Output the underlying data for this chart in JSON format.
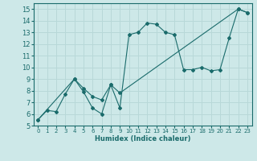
{
  "xlabel": "Humidex (Indice chaleur)",
  "ylabel": "",
  "background_color": "#cde8e8",
  "grid_color": "#b8d8d8",
  "line_color": "#1a6b6b",
  "xlim": [
    -0.5,
    23.5
  ],
  "ylim": [
    5,
    15.5
  ],
  "yticks": [
    5,
    6,
    7,
    8,
    9,
    10,
    11,
    12,
    13,
    14,
    15
  ],
  "xticks": [
    0,
    1,
    2,
    3,
    4,
    5,
    6,
    7,
    8,
    9,
    10,
    11,
    12,
    13,
    14,
    15,
    16,
    17,
    18,
    19,
    20,
    21,
    22,
    23
  ],
  "line1_x": [
    0,
    1,
    2,
    3,
    4,
    5,
    6,
    7,
    8,
    9,
    10,
    11,
    12,
    13,
    14,
    15,
    16,
    17,
    18,
    19,
    20,
    21,
    22,
    23
  ],
  "line1_y": [
    5.5,
    6.3,
    6.2,
    7.7,
    9.0,
    7.9,
    6.5,
    6.0,
    8.5,
    6.5,
    12.8,
    13.0,
    13.8,
    13.7,
    13.0,
    12.8,
    9.8,
    9.8,
    10.0,
    9.7,
    9.8,
    12.5,
    15.0,
    14.7
  ],
  "line2_x": [
    0,
    4,
    5,
    6,
    7,
    8,
    9,
    22,
    23
  ],
  "line2_y": [
    5.5,
    9.0,
    8.2,
    7.5,
    7.2,
    8.5,
    7.8,
    15.0,
    14.7
  ]
}
